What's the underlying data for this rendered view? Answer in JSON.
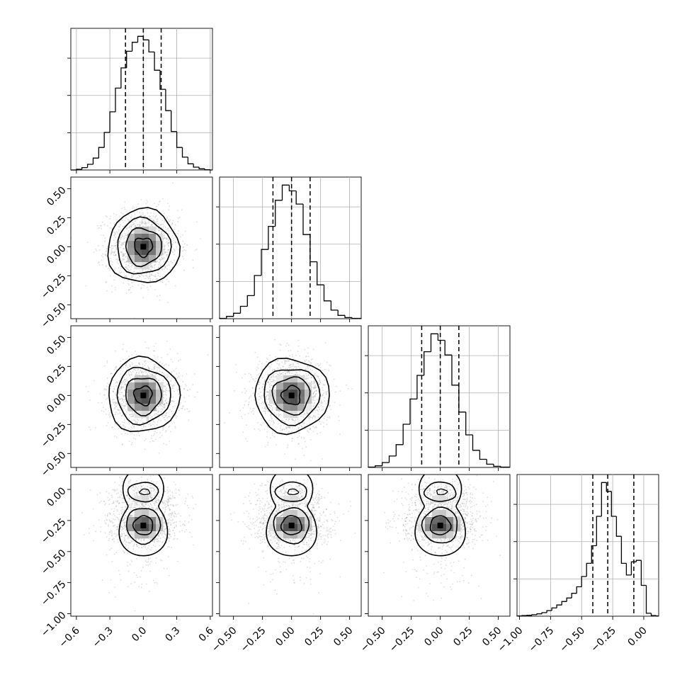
{
  "chart_data": {
    "type": "corner",
    "n_params": 4,
    "quantiles": [
      0.16,
      0.5,
      0.84
    ],
    "params": [
      {
        "range": [
          -0.65,
          0.62
        ],
        "ticks": [
          {
            "v": -0.6,
            "label": "−0.6"
          },
          {
            "v": -0.3,
            "label": "−0.3"
          },
          {
            "v": 0.0,
            "label": "0.0"
          },
          {
            "v": 0.3,
            "label": "0.3"
          },
          {
            "v": 0.6,
            "label": "0.6"
          }
        ],
        "quantile_values": [
          -0.16,
          0.0,
          0.16
        ],
        "hist_edges": [
          -0.65,
          -0.6,
          -0.55,
          -0.5,
          -0.45,
          -0.4,
          -0.35,
          -0.3,
          -0.25,
          -0.2,
          -0.15,
          -0.1,
          -0.05,
          0.0,
          0.05,
          0.1,
          0.15,
          0.2,
          0.25,
          0.3,
          0.35,
          0.4,
          0.45,
          0.5,
          0.55,
          0.6,
          0.62
        ],
        "hist_counts": [
          0,
          3,
          10,
          24,
          50,
          95,
          158,
          245,
          345,
          430,
          500,
          538,
          563,
          548,
          497,
          420,
          340,
          250,
          162,
          95,
          54,
          26,
          12,
          5,
          1,
          0
        ]
      },
      {
        "range": [
          -0.62,
          0.6
        ],
        "ticks": [
          {
            "v": -0.5,
            "label": "−0.50"
          },
          {
            "v": -0.25,
            "label": "−0.25"
          },
          {
            "v": 0.0,
            "label": "0.00"
          },
          {
            "v": 0.25,
            "label": "0.25"
          },
          {
            "v": 0.5,
            "label": "0.50"
          }
        ],
        "quantile_values": [
          -0.16,
          0.0,
          0.16
        ],
        "hist_edges": [
          -0.62,
          -0.56,
          -0.5,
          -0.44,
          -0.38,
          -0.32,
          -0.26,
          -0.2,
          -0.14,
          -0.08,
          -0.02,
          0.04,
          0.1,
          0.16,
          0.22,
          0.28,
          0.34,
          0.4,
          0.46,
          0.52,
          0.6
        ],
        "hist_counts": [
          2,
          14,
          33,
          75,
          140,
          262,
          420,
          560,
          718,
          810,
          775,
          695,
          510,
          345,
          205,
          108,
          52,
          20,
          7,
          2
        ]
      },
      {
        "range": [
          -0.62,
          0.6
        ],
        "ticks": [
          {
            "v": -0.5,
            "label": "−0.50"
          },
          {
            "v": -0.25,
            "label": "−0.25"
          },
          {
            "v": 0.0,
            "label": "0.00"
          },
          {
            "v": 0.25,
            "label": "0.25"
          },
          {
            "v": 0.5,
            "label": "0.50"
          }
        ],
        "quantile_values": [
          -0.16,
          0.0,
          0.16
        ],
        "hist_edges": [
          -0.62,
          -0.56,
          -0.5,
          -0.44,
          -0.38,
          -0.32,
          -0.26,
          -0.2,
          -0.14,
          -0.08,
          -0.02,
          0.04,
          0.1,
          0.16,
          0.22,
          0.28,
          0.34,
          0.4,
          0.46,
          0.52,
          0.6
        ],
        "hist_counts": [
          2,
          10,
          30,
          70,
          140,
          265,
          420,
          565,
          710,
          820,
          780,
          690,
          505,
          340,
          200,
          105,
          50,
          20,
          7,
          2
        ]
      },
      {
        "range": [
          -1.02,
          0.12
        ],
        "ticks": [
          {
            "v": -1.0,
            "label": "−1.00"
          },
          {
            "v": -0.75,
            "label": "−0.75"
          },
          {
            "v": -0.5,
            "label": "−0.50"
          },
          {
            "v": -0.25,
            "label": "−0.25"
          },
          {
            "v": 0.0,
            "label": "0.00"
          }
        ],
        "quantile_values": [
          -0.41,
          -0.29,
          -0.08
        ],
        "hist_edges": [
          -1.02,
          -0.98,
          -0.94,
          -0.9,
          -0.86,
          -0.82,
          -0.78,
          -0.74,
          -0.7,
          -0.66,
          -0.62,
          -0.58,
          -0.54,
          -0.5,
          -0.46,
          -0.42,
          -0.38,
          -0.34,
          -0.3,
          -0.26,
          -0.22,
          -0.18,
          -0.14,
          -0.1,
          -0.06,
          -0.02,
          0.02,
          0.06,
          0.1,
          0.12
        ],
        "hist_counts": [
          1,
          2,
          3,
          5,
          8,
          12,
          19,
          28,
          38,
          50,
          62,
          78,
          100,
          135,
          180,
          240,
          340,
          455,
          425,
          340,
          272,
          180,
          140,
          185,
          190,
          105,
          10,
          2,
          1
        ]
      }
    ],
    "panels_2d": [
      {
        "row": 1,
        "col": 0
      },
      {
        "row": 2,
        "col": 0
      },
      {
        "row": 2,
        "col": 1
      },
      {
        "row": 3,
        "col": 0
      },
      {
        "row": 3,
        "col": 1
      },
      {
        "row": 3,
        "col": 2
      }
    ],
    "grid": true,
    "colors": {
      "line": "#000000",
      "grid": "#b0b0b0",
      "points": "#9a9a9a"
    }
  }
}
